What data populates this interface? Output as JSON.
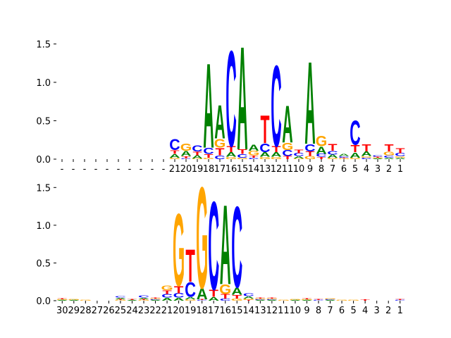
{
  "chart_data": [
    {
      "type": "logo",
      "categories": [
        "-",
        "-",
        "-",
        "-",
        "-",
        "-",
        "-",
        "-",
        "-",
        "-",
        "21",
        "20",
        "19",
        "18",
        "17",
        "16",
        "15",
        "14",
        "13",
        "12",
        "11",
        "10",
        "9",
        "8",
        "7",
        "6",
        "5",
        "4",
        "3",
        "2",
        "1"
      ],
      "series": [
        {
          "name": "A",
          "color": "#008000",
          "values": [
            0,
            0,
            0,
            0,
            0,
            0,
            0,
            0,
            0,
            0,
            0.05,
            0.07,
            0.04,
            1.15,
            0.45,
            0.06,
            1.4,
            0.08,
            0.06,
            0.06,
            0.5,
            0.03,
            1.12,
            0.1,
            0.04,
            0.03,
            0.07,
            0.06,
            0.01,
            0.02,
            0.02
          ]
        },
        {
          "name": "C",
          "color": "#0000ff",
          "values": [
            0,
            0,
            0,
            0,
            0,
            0,
            0,
            0,
            0,
            0,
            0.15,
            0.01,
            0.08,
            0.08,
            0.05,
            1.3,
            0.05,
            0.02,
            0.12,
            1.1,
            0.08,
            0.04,
            0.1,
            0.04,
            0.05,
            0.02,
            0.33,
            0.02,
            0.02,
            0.03,
            0.04
          ]
        },
        {
          "name": "G",
          "color": "#ffa500",
          "values": [
            0,
            0,
            0,
            0,
            0,
            0,
            0,
            0,
            0,
            0,
            0.02,
            0.1,
            0.01,
            0.02,
            0.12,
            0.03,
            0.02,
            0.06,
            0.03,
            0.03,
            0.1,
            0.01,
            0.04,
            0.14,
            0.02,
            0.01,
            0.02,
            0.02,
            0.01,
            0.05,
            0.02
          ]
        },
        {
          "name": "T",
          "color": "#ff0000",
          "values": [
            0,
            0,
            0,
            0,
            0,
            0,
            0,
            0,
            0,
            0,
            0.05,
            0.03,
            0.05,
            0.05,
            0.1,
            0.08,
            0.06,
            0.03,
            0.38,
            0.08,
            0.04,
            0.05,
            0.06,
            0.03,
            0.09,
            0.01,
            0.1,
            0.1,
            0.01,
            0.1,
            0.07
          ]
        }
      ],
      "ylim": [
        0,
        1.54
      ],
      "yticks": [
        {
          "value": 0,
          "label": "0.0"
        },
        {
          "value": 0.5,
          "label": "0.5"
        },
        {
          "value": 1,
          "label": "1.0"
        },
        {
          "value": 1.5,
          "label": "1.5"
        }
      ]
    },
    {
      "type": "logo",
      "categories": [
        "30",
        "29",
        "28",
        "27",
        "26",
        "25",
        "24",
        "23",
        "22",
        "21",
        "20",
        "19",
        "18",
        "17",
        "16",
        "15",
        "14",
        "13",
        "12",
        "11",
        "10",
        "9",
        "8",
        "7",
        "6",
        "5",
        "4",
        "3",
        "2",
        "1"
      ],
      "series": [
        {
          "name": "A",
          "color": "#008000",
          "values": [
            0.01,
            0.01,
            0,
            0,
            0,
            0.02,
            0.01,
            0.02,
            0.01,
            0.04,
            0.04,
            0.03,
            0.15,
            0.05,
            1.1,
            0.1,
            0.03,
            0.01,
            0.01,
            0,
            0.01,
            0.01,
            0,
            0.01,
            0,
            0,
            0,
            0,
            0,
            0
          ]
        },
        {
          "name": "C",
          "color": "#0000ff",
          "values": [
            0,
            0,
            0,
            0,
            0,
            0.02,
            0,
            0.03,
            0.01,
            0.05,
            0.06,
            0.2,
            0.01,
            1.22,
            0.03,
            1.12,
            0.04,
            0.01,
            0.01,
            0,
            0,
            0,
            0.01,
            0.01,
            0,
            0,
            0,
            0,
            0,
            0.01
          ]
        },
        {
          "name": "G",
          "color": "#ffa500",
          "values": [
            0.01,
            0.01,
            0.01,
            0,
            0,
            0.01,
            0,
            0.01,
            0.01,
            0.06,
            1.0,
            0.02,
            1.4,
            0,
            0.13,
            0.03,
            0.02,
            0.01,
            0.01,
            0.01,
            0.01,
            0.01,
            0,
            0.01,
            0.01,
            0.01,
            0,
            0,
            0,
            0
          ]
        },
        {
          "name": "T",
          "color": "#ff0000",
          "values": [
            0.01,
            0,
            0,
            0,
            0,
            0.01,
            0.01,
            0.01,
            0.01,
            0.05,
            0.1,
            0.45,
            0.01,
            0.1,
            0.06,
            0.05,
            0.01,
            0.01,
            0.01,
            0,
            0,
            0.01,
            0.01,
            0,
            0,
            0,
            0.02,
            0,
            0,
            0.01
          ]
        }
      ],
      "ylim": [
        0,
        1.54
      ],
      "yticks": [
        {
          "value": 0,
          "label": "0.0"
        },
        {
          "value": 0.5,
          "label": "0.5"
        },
        {
          "value": 1,
          "label": "1.0"
        },
        {
          "value": 1.5,
          "label": "1.5"
        }
      ]
    }
  ]
}
